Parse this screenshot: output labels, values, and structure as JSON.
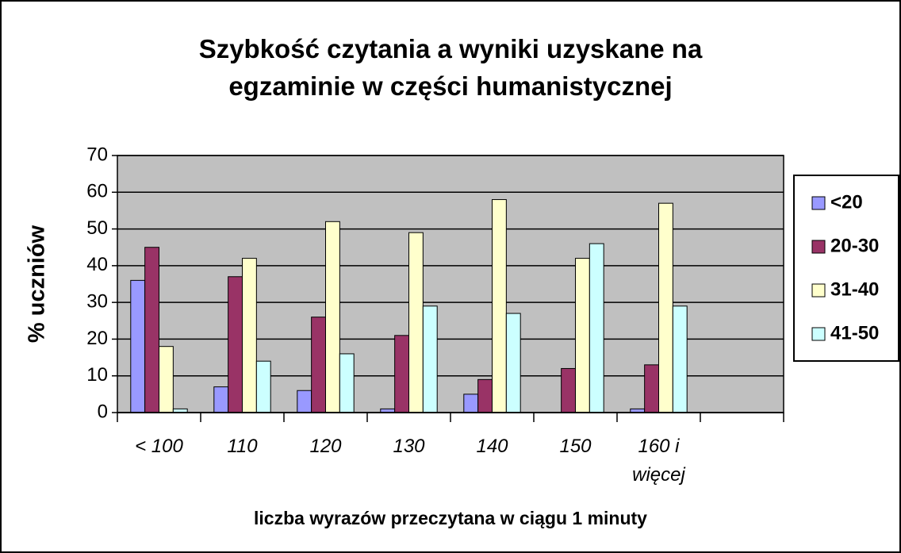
{
  "chart_data": {
    "type": "bar",
    "title": "Szybkość czytania a  wyniki uzyskane na egzaminie w części humanistycznej",
    "x_label": "liczba wyrazów przeczytana w ciągu 1 minuty",
    "y_label": "% uczniów",
    "categories": [
      "< 100",
      "110",
      "120",
      "130",
      "140",
      "150",
      "160 i więcej",
      null
    ],
    "series": [
      {
        "name": "<20",
        "color": "#9999ff",
        "values": [
          36,
          7,
          6,
          1,
          5,
          0,
          1,
          null
        ]
      },
      {
        "name": "20-30",
        "color": "#993366",
        "values": [
          45,
          37,
          26,
          21,
          9,
          12,
          13,
          null
        ]
      },
      {
        "name": "31-40",
        "color": "#ffffcc",
        "values": [
          18,
          42,
          52,
          49,
          58,
          42,
          57,
          null
        ]
      },
      {
        "name": "41-50",
        "color": "#ccffff",
        "values": [
          1,
          14,
          16,
          29,
          27,
          46,
          29,
          null
        ]
      }
    ],
    "ylim": [
      0,
      70
    ],
    "yticks": [
      0,
      10,
      20,
      30,
      40,
      50,
      60,
      70
    ],
    "grid": true,
    "legend": "right",
    "plot_background": "#c0c0c0"
  }
}
